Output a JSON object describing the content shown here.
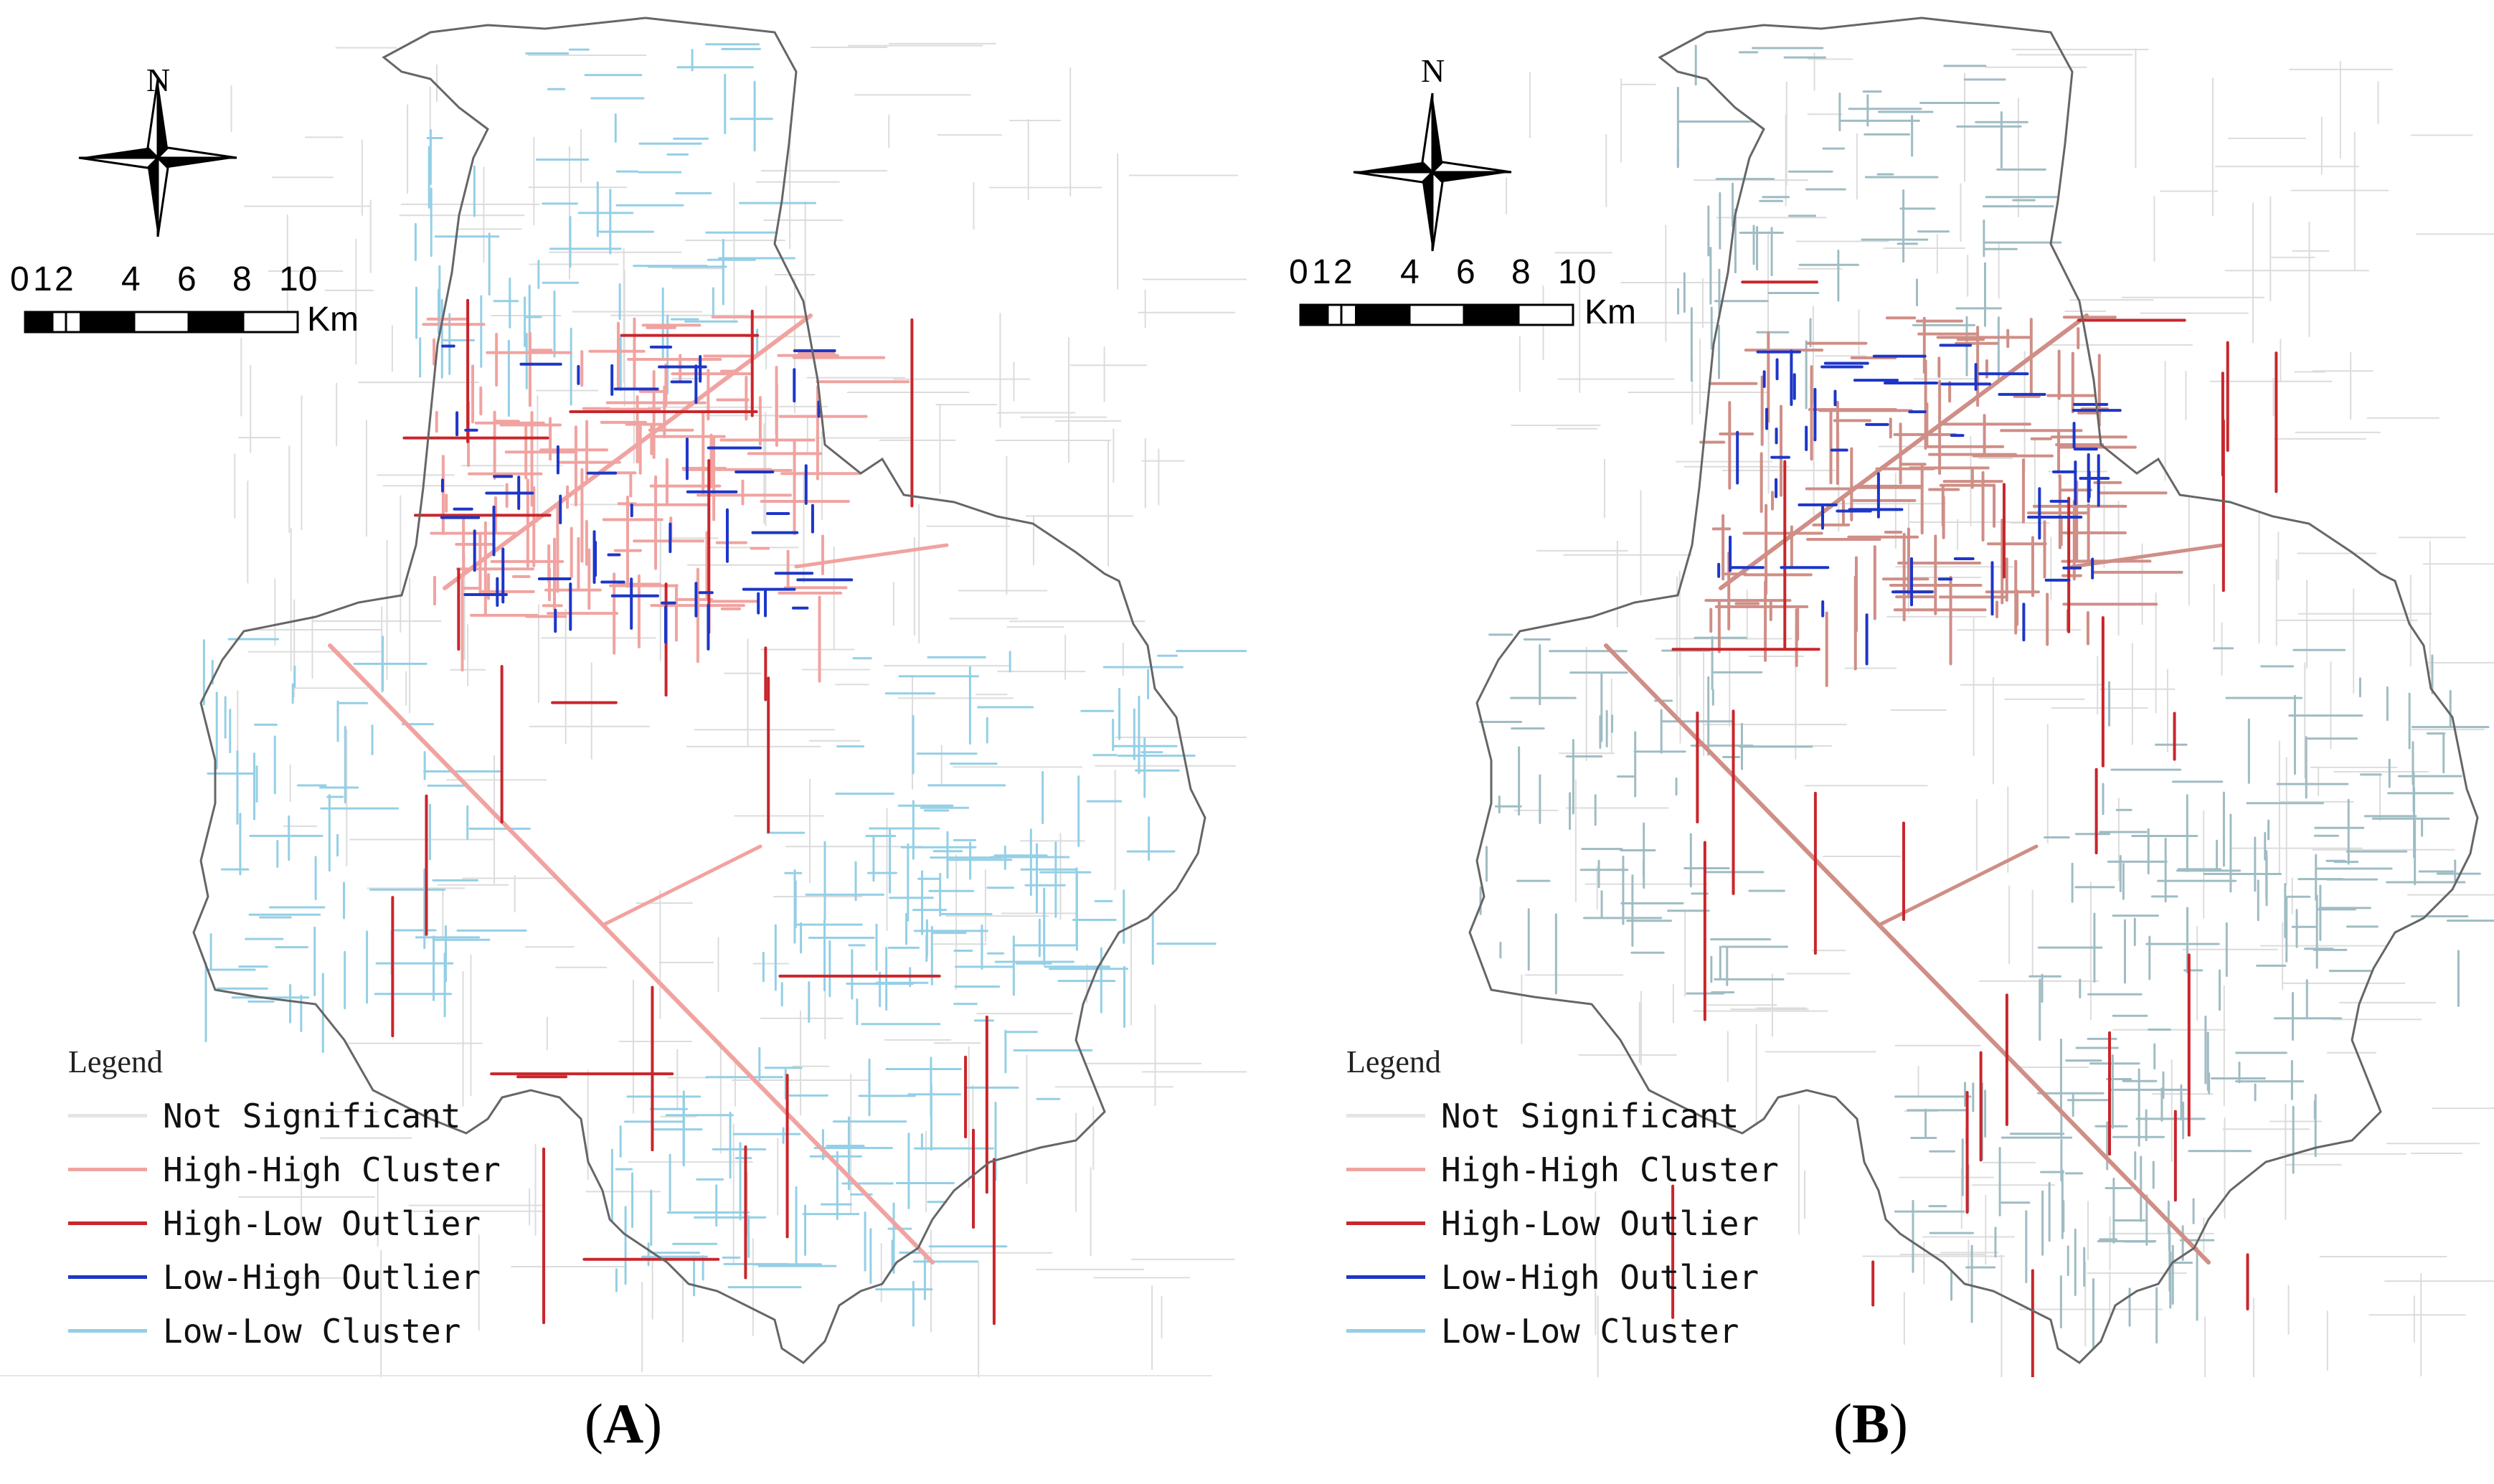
{
  "panels": [
    {
      "id": "A",
      "label_open": "(",
      "label_letter": "A",
      "label_close": ")",
      "palette": {
        "ns": "#dcdcdc",
        "hh": "#f0a3a0",
        "hl": "#c8262c",
        "lh": "#1d36c8",
        "ll": "#94cfe6"
      }
    },
    {
      "id": "B",
      "label_open": "(",
      "label_letter": "B",
      "label_close": ")",
      "palette": {
        "ns": "#dcdcdc",
        "hh": "#cf8e86",
        "hl": "#c8262c",
        "lh": "#1d36c8",
        "ll": "#9fbcc3"
      }
    }
  ],
  "north_arrow": {
    "label": "N"
  },
  "scale_bar": {
    "ticks": [
      "0",
      "1",
      "2",
      "4",
      "6",
      "8",
      "10"
    ],
    "unit": "Km"
  },
  "legend": {
    "title": "Legend",
    "items": [
      {
        "key": "ns",
        "label": "Not Significant",
        "color": "#e4e4e4"
      },
      {
        "key": "hh",
        "label": "High-High Cluster",
        "color": "#f0a3a0"
      },
      {
        "key": "hl",
        "label": "High-Low Outlier",
        "color": "#c8262c"
      },
      {
        "key": "lh",
        "label": "Low-High Outlier",
        "color": "#1d36c8"
      },
      {
        "key": "ll",
        "label": "Low-Low Cluster",
        "color": "#94cfe6"
      }
    ]
  },
  "colors": {
    "boundary": "#666666",
    "north_fill": "#000000"
  }
}
